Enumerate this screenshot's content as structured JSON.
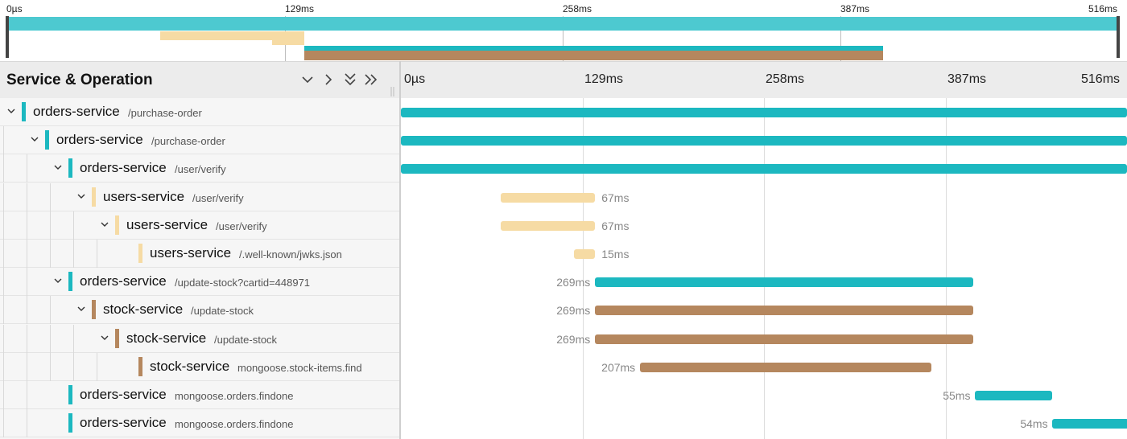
{
  "colors": {
    "orders": "#1cb8c0",
    "users": "#f6dba4",
    "stock": "#b5875e",
    "minimap_orders": "#4dc9d0"
  },
  "minimap": {
    "ticks": [
      "0µs",
      "129ms",
      "258ms",
      "387ms",
      "516ms"
    ],
    "trace_duration_ms": 516
  },
  "header": {
    "title": "Service & Operation",
    "buttons": [
      {
        "name": "collapse-one-button",
        "icon": "chevron-down-icon"
      },
      {
        "name": "expand-one-button",
        "icon": "chevron-right-icon"
      },
      {
        "name": "expand-all-button",
        "icon": "double-chevron-down-icon"
      },
      {
        "name": "collapse-all-button",
        "icon": "double-chevron-right-icon"
      }
    ],
    "timeline_ticks": [
      "0µs",
      "129ms",
      "258ms",
      "387ms",
      "516ms"
    ]
  },
  "spans": [
    {
      "service": "orders-service",
      "operation": "/purchase-order",
      "depth": 0,
      "expandable": true,
      "start_ms": 0,
      "duration_ms": 516,
      "label": "",
      "label_side": "none",
      "color_key": "orders"
    },
    {
      "service": "orders-service",
      "operation": "/purchase-order",
      "depth": 1,
      "expandable": true,
      "start_ms": 0,
      "duration_ms": 516,
      "label": "",
      "label_side": "none",
      "color_key": "orders"
    },
    {
      "service": "orders-service",
      "operation": "/user/verify",
      "depth": 2,
      "expandable": true,
      "start_ms": 0,
      "duration_ms": 516,
      "label": "",
      "label_side": "none",
      "color_key": "orders"
    },
    {
      "service": "users-service",
      "operation": "/user/verify",
      "depth": 3,
      "expandable": true,
      "start_ms": 71,
      "duration_ms": 67,
      "label": "67ms",
      "label_side": "right",
      "color_key": "users"
    },
    {
      "service": "users-service",
      "operation": "/user/verify",
      "depth": 4,
      "expandable": true,
      "start_ms": 71,
      "duration_ms": 67,
      "label": "67ms",
      "label_side": "right",
      "color_key": "users"
    },
    {
      "service": "users-service",
      "operation": "/.well-known/jwks.json",
      "depth": 5,
      "expandable": false,
      "start_ms": 123,
      "duration_ms": 15,
      "label": "15ms",
      "label_side": "right",
      "color_key": "users"
    },
    {
      "service": "orders-service",
      "operation": "/update-stock?cartid=448971",
      "depth": 2,
      "expandable": true,
      "start_ms": 138,
      "duration_ms": 269,
      "label": "269ms",
      "label_side": "left",
      "color_key": "orders"
    },
    {
      "service": "stock-service",
      "operation": "/update-stock",
      "depth": 3,
      "expandable": true,
      "start_ms": 138,
      "duration_ms": 269,
      "label": "269ms",
      "label_side": "left",
      "color_key": "stock"
    },
    {
      "service": "stock-service",
      "operation": "/update-stock",
      "depth": 4,
      "expandable": true,
      "start_ms": 138,
      "duration_ms": 269,
      "label": "269ms",
      "label_side": "left",
      "color_key": "stock"
    },
    {
      "service": "stock-service",
      "operation": "mongoose.stock-items.find",
      "depth": 5,
      "expandable": false,
      "start_ms": 170,
      "duration_ms": 207,
      "label": "207ms",
      "label_side": "left",
      "color_key": "stock"
    },
    {
      "service": "orders-service",
      "operation": "mongoose.orders.findone",
      "depth": 2,
      "expandable": false,
      "start_ms": 408,
      "duration_ms": 55,
      "label": "55ms",
      "label_side": "left",
      "color_key": "orders"
    },
    {
      "service": "orders-service",
      "operation": "mongoose.orders.findone",
      "depth": 2,
      "expandable": false,
      "start_ms": 463,
      "duration_ms": 54,
      "label": "54ms",
      "label_side": "left",
      "color_key": "orders"
    }
  ]
}
